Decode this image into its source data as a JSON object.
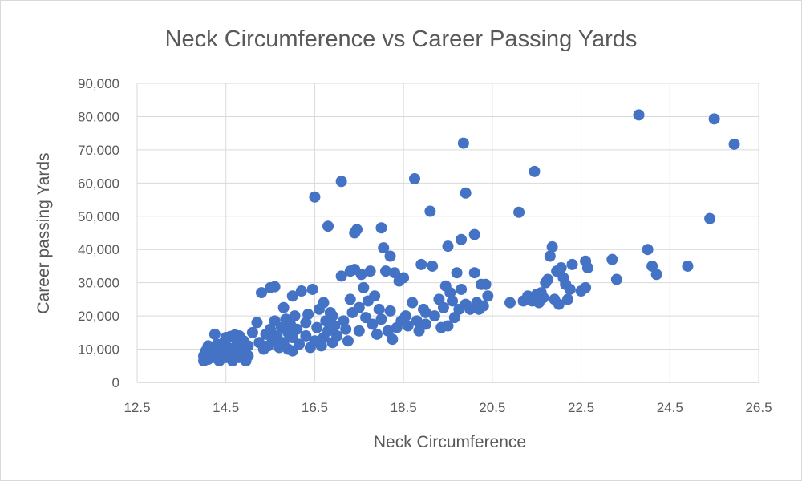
{
  "chart_data": {
    "type": "scatter",
    "title": "Neck Circumference vs Career Passing Yards",
    "xlabel": "Neck Circumference",
    "ylabel": "Career passing Yards",
    "xlim": [
      12.5,
      26.5
    ],
    "ylim": [
      0,
      90000
    ],
    "x_ticks": [
      "12.5",
      "14.5",
      "16.5",
      "18.5",
      "20.5",
      "22.5",
      "24.5",
      "26.5"
    ],
    "y_ticks": [
      "0",
      "10,000",
      "20,000",
      "30,000",
      "40,000",
      "50,000",
      "60,000",
      "70,000",
      "80,000",
      "90,000"
    ],
    "grid": true,
    "legend": "none",
    "marker_color": "#4472C4",
    "points": [
      [
        14.0,
        6500
      ],
      [
        14.0,
        8000
      ],
      [
        14.05,
        9500
      ],
      [
        14.1,
        11000
      ],
      [
        14.1,
        7000
      ],
      [
        14.2,
        10000
      ],
      [
        14.25,
        14500
      ],
      [
        14.3,
        8500
      ],
      [
        14.3,
        11500
      ],
      [
        14.35,
        6500
      ],
      [
        14.4,
        9000
      ],
      [
        14.45,
        12000
      ],
      [
        14.5,
        7500
      ],
      [
        14.55,
        10500
      ],
      [
        14.6,
        8500
      ],
      [
        14.6,
        13800
      ],
      [
        14.65,
        6500
      ],
      [
        14.7,
        9500
      ],
      [
        14.75,
        11500
      ],
      [
        14.8,
        7500
      ],
      [
        14.8,
        14000
      ],
      [
        14.85,
        9000
      ],
      [
        14.9,
        10500
      ],
      [
        14.95,
        6500
      ],
      [
        15.0,
        8000
      ],
      [
        15.0,
        11000
      ],
      [
        14.7,
        14300
      ],
      [
        14.5,
        13500
      ],
      [
        14.2,
        7500
      ],
      [
        14.9,
        12500
      ],
      [
        15.1,
        15000
      ],
      [
        15.2,
        18000
      ],
      [
        15.25,
        12000
      ],
      [
        15.3,
        27000
      ],
      [
        15.35,
        10000
      ],
      [
        15.4,
        14500
      ],
      [
        15.45,
        11000
      ],
      [
        15.5,
        28500
      ],
      [
        15.5,
        16000
      ],
      [
        15.55,
        12500
      ],
      [
        15.6,
        28800
      ],
      [
        15.6,
        18500
      ],
      [
        15.65,
        14000
      ],
      [
        15.7,
        10500
      ],
      [
        15.75,
        16500
      ],
      [
        15.8,
        22500
      ],
      [
        15.8,
        12000
      ],
      [
        15.85,
        19000
      ],
      [
        15.9,
        15000
      ],
      [
        15.9,
        10000
      ],
      [
        15.95,
        17500
      ],
      [
        16.0,
        26000
      ],
      [
        16.0,
        13500
      ],
      [
        16.0,
        9500
      ],
      [
        16.05,
        20000
      ],
      [
        16.1,
        16000
      ],
      [
        16.15,
        11500
      ],
      [
        16.2,
        27500
      ],
      [
        16.3,
        18000
      ],
      [
        16.3,
        14000
      ],
      [
        16.35,
        20500
      ],
      [
        16.4,
        10500
      ],
      [
        16.45,
        28000
      ],
      [
        16.5,
        55800
      ],
      [
        16.5,
        12500
      ],
      [
        16.55,
        16500
      ],
      [
        16.6,
        22000
      ],
      [
        16.65,
        11000
      ],
      [
        16.7,
        24000
      ],
      [
        16.7,
        13500
      ],
      [
        16.75,
        18500
      ],
      [
        16.8,
        47000
      ],
      [
        16.8,
        15500
      ],
      [
        16.85,
        21000
      ],
      [
        16.9,
        12000
      ],
      [
        16.9,
        20000
      ],
      [
        16.95,
        17000
      ],
      [
        17.0,
        14000
      ],
      [
        17.1,
        60500
      ],
      [
        17.1,
        32000
      ],
      [
        17.15,
        18500
      ],
      [
        17.2,
        16000
      ],
      [
        17.25,
        12500
      ],
      [
        17.3,
        33500
      ],
      [
        17.3,
        25000
      ],
      [
        17.35,
        21000
      ],
      [
        17.4,
        45000
      ],
      [
        17.4,
        34000
      ],
      [
        17.45,
        46000
      ],
      [
        17.5,
        15500
      ],
      [
        17.5,
        22500
      ],
      [
        17.55,
        32500
      ],
      [
        17.6,
        28500
      ],
      [
        17.65,
        19500
      ],
      [
        17.7,
        24500
      ],
      [
        17.75,
        33500
      ],
      [
        17.8,
        17500
      ],
      [
        17.85,
        26000
      ],
      [
        17.9,
        14500
      ],
      [
        17.95,
        22000
      ],
      [
        18.0,
        46500
      ],
      [
        18.0,
        19000
      ],
      [
        18.05,
        40500
      ],
      [
        18.1,
        33500
      ],
      [
        18.15,
        15500
      ],
      [
        18.2,
        38000
      ],
      [
        18.2,
        21500
      ],
      [
        18.25,
        13000
      ],
      [
        18.3,
        33000
      ],
      [
        18.35,
        16500
      ],
      [
        18.4,
        30500
      ],
      [
        18.45,
        18500
      ],
      [
        18.5,
        31500
      ],
      [
        18.55,
        20000
      ],
      [
        18.6,
        17000
      ],
      [
        18.7,
        24000
      ],
      [
        18.75,
        61300
      ],
      [
        18.8,
        18500
      ],
      [
        18.85,
        15500
      ],
      [
        18.9,
        35500
      ],
      [
        18.95,
        22000
      ],
      [
        19.0,
        21000
      ],
      [
        19.0,
        17500
      ],
      [
        19.1,
        51500
      ],
      [
        19.15,
        35000
      ],
      [
        19.2,
        20000
      ],
      [
        19.3,
        25000
      ],
      [
        19.35,
        16500
      ],
      [
        19.4,
        22500
      ],
      [
        19.45,
        29000
      ],
      [
        19.5,
        41000
      ],
      [
        19.5,
        17000
      ],
      [
        19.55,
        27000
      ],
      [
        19.6,
        24500
      ],
      [
        19.65,
        19500
      ],
      [
        19.7,
        33000
      ],
      [
        19.75,
        22000
      ],
      [
        19.8,
        43000
      ],
      [
        19.8,
        28000
      ],
      [
        19.85,
        72000
      ],
      [
        19.9,
        57000
      ],
      [
        19.9,
        23500
      ],
      [
        20.0,
        22000
      ],
      [
        20.1,
        44500
      ],
      [
        20.1,
        33000
      ],
      [
        20.15,
        24000
      ],
      [
        20.2,
        22000
      ],
      [
        20.25,
        29500
      ],
      [
        20.3,
        23000
      ],
      [
        20.35,
        29500
      ],
      [
        20.4,
        26000
      ],
      [
        20.9,
        24000
      ],
      [
        21.1,
        51200
      ],
      [
        21.2,
        24500
      ],
      [
        21.3,
        26000
      ],
      [
        21.4,
        24500
      ],
      [
        21.45,
        63500
      ],
      [
        21.5,
        26500
      ],
      [
        21.55,
        24000
      ],
      [
        21.6,
        27000
      ],
      [
        21.65,
        25500
      ],
      [
        21.7,
        30000
      ],
      [
        21.75,
        31000
      ],
      [
        21.8,
        38000
      ],
      [
        21.85,
        40800
      ],
      [
        21.9,
        25000
      ],
      [
        21.95,
        33500
      ],
      [
        22.0,
        23500
      ],
      [
        22.05,
        34500
      ],
      [
        22.1,
        31500
      ],
      [
        22.15,
        29500
      ],
      [
        22.2,
        25000
      ],
      [
        22.25,
        28000
      ],
      [
        22.3,
        35500
      ],
      [
        22.5,
        27500
      ],
      [
        22.6,
        28500
      ],
      [
        22.6,
        36500
      ],
      [
        22.65,
        34500
      ],
      [
        23.2,
        37000
      ],
      [
        23.3,
        31000
      ],
      [
        23.8,
        80500
      ],
      [
        24.0,
        40000
      ],
      [
        24.1,
        35000
      ],
      [
        24.2,
        32500
      ],
      [
        24.9,
        35000
      ],
      [
        25.4,
        49300
      ],
      [
        25.5,
        79300
      ],
      [
        25.95,
        71700
      ]
    ]
  }
}
